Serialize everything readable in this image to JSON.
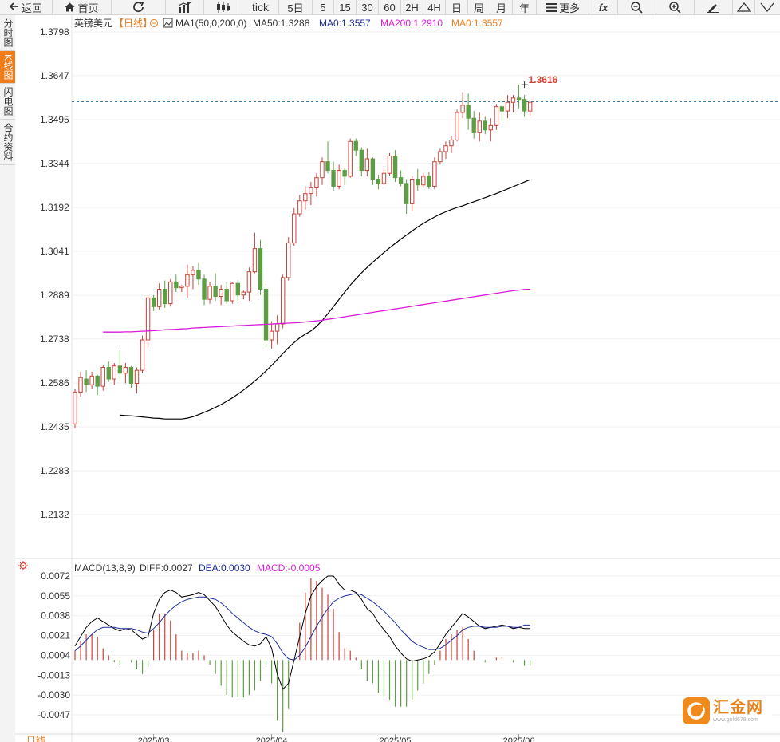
{
  "toolbar": {
    "back": "返回",
    "home": "首页",
    "tick": "tick",
    "five_day": "5日",
    "periods": [
      "5",
      "15",
      "30",
      "60",
      "2H",
      "4H",
      "日",
      "周",
      "月",
      "年"
    ],
    "more": "更多",
    "fx": "fx"
  },
  "side_tabs": [
    {
      "label": "分时图",
      "active": false
    },
    {
      "label": "K线图",
      "active": true
    },
    {
      "label": "闪电图",
      "active": false
    },
    {
      "label": "合约资料",
      "active": false
    }
  ],
  "legend": {
    "symbol": "英镑美元",
    "period": "【日线】",
    "indicator": "MA1(50,0,200,0)",
    "ma50": "MA50:1.3288",
    "ma0": "MA0:1.3557",
    "ma200": "MA200:1.2910",
    "ma0b": "MA0:1.3557"
  },
  "macd_legend": {
    "name": "MACD(13,8,9)",
    "diff": "DIFF:0.0027",
    "dea": "DEA:0.0030",
    "macd": "MACD:-0.0005"
  },
  "bottom_label": "日线",
  "logo": {
    "name": "汇金网",
    "url": "www.gold678.com"
  },
  "colors": {
    "up": "#c9413a",
    "down": "#5d9e45",
    "ma50": "#000000",
    "ma200": "#d81bd8",
    "diff": "#000000",
    "dea": "#1f2f9c",
    "accent": "#f07c1a"
  },
  "chart_data": [
    {
      "type": "candlestick",
      "title": "英镑美元【日线】",
      "y_ticks": [
        "1.3798",
        "1.3647",
        "1.3495",
        "1.3344",
        "1.3192",
        "1.3041",
        "1.2889",
        "1.2738",
        "1.2586",
        "1.2435",
        "1.2283",
        "1.2132"
      ],
      "ylim": [
        1.205,
        1.383
      ],
      "x_ticks": [
        {
          "label": "2025/03",
          "index": 14
        },
        {
          "label": "2025/04",
          "index": 35
        },
        {
          "label": "2025/05",
          "index": 57
        },
        {
          "label": "2025/06",
          "index": 79
        }
      ],
      "last_price_line": 1.3557,
      "high_annotation": {
        "label": "1.3616",
        "value": 1.3616,
        "index": 80
      },
      "candles": [
        {
          "o": 1.2445,
          "h": 1.2565,
          "l": 1.243,
          "c": 1.2555
        },
        {
          "o": 1.2555,
          "h": 1.2625,
          "l": 1.254,
          "c": 1.2605
        },
        {
          "o": 1.26,
          "h": 1.263,
          "l": 1.2555,
          "c": 1.258
        },
        {
          "o": 1.258,
          "h": 1.2625,
          "l": 1.2565,
          "c": 1.261
        },
        {
          "o": 1.261,
          "h": 1.2615,
          "l": 1.2545,
          "c": 1.2575
        },
        {
          "o": 1.2575,
          "h": 1.265,
          "l": 1.256,
          "c": 1.264
        },
        {
          "o": 1.264,
          "h": 1.266,
          "l": 1.259,
          "c": 1.26
        },
        {
          "o": 1.26,
          "h": 1.2655,
          "l": 1.258,
          "c": 1.2645
        },
        {
          "o": 1.2645,
          "h": 1.27,
          "l": 1.26,
          "c": 1.262
        },
        {
          "o": 1.262,
          "h": 1.2655,
          "l": 1.2585,
          "c": 1.264
        },
        {
          "o": 1.264,
          "h": 1.2645,
          "l": 1.257,
          "c": 1.2585
        },
        {
          "o": 1.2585,
          "h": 1.264,
          "l": 1.255,
          "c": 1.263
        },
        {
          "o": 1.263,
          "h": 1.275,
          "l": 1.262,
          "c": 1.2735
        },
        {
          "o": 1.2735,
          "h": 1.289,
          "l": 1.271,
          "c": 1.288
        },
        {
          "o": 1.288,
          "h": 1.289,
          "l": 1.2835,
          "c": 1.285
        },
        {
          "o": 1.285,
          "h": 1.293,
          "l": 1.284,
          "c": 1.291
        },
        {
          "o": 1.291,
          "h": 1.294,
          "l": 1.2845,
          "c": 1.286
        },
        {
          "o": 1.286,
          "h": 1.2945,
          "l": 1.285,
          "c": 1.2935
        },
        {
          "o": 1.2935,
          "h": 1.296,
          "l": 1.29,
          "c": 1.2915
        },
        {
          "o": 1.2915,
          "h": 1.2925,
          "l": 1.29,
          "c": 1.292
        },
        {
          "o": 1.292,
          "h": 1.2995,
          "l": 1.288,
          "c": 1.296
        },
        {
          "o": 1.296,
          "h": 1.299,
          "l": 1.291,
          "c": 1.2975
        },
        {
          "o": 1.2975,
          "h": 1.3,
          "l": 1.2925,
          "c": 1.2945
        },
        {
          "o": 1.2945,
          "h": 1.296,
          "l": 1.2855,
          "c": 1.2875
        },
        {
          "o": 1.2875,
          "h": 1.2935,
          "l": 1.286,
          "c": 1.292
        },
        {
          "o": 1.292,
          "h": 1.2965,
          "l": 1.287,
          "c": 1.2885
        },
        {
          "o": 1.2885,
          "h": 1.2925,
          "l": 1.2855,
          "c": 1.291
        },
        {
          "o": 1.291,
          "h": 1.2935,
          "l": 1.286,
          "c": 1.287
        },
        {
          "o": 1.287,
          "h": 1.2935,
          "l": 1.286,
          "c": 1.293
        },
        {
          "o": 1.293,
          "h": 1.294,
          "l": 1.287,
          "c": 1.289
        },
        {
          "o": 1.289,
          "h": 1.2905,
          "l": 1.2875,
          "c": 1.29
        },
        {
          "o": 1.29,
          "h": 1.2985,
          "l": 1.287,
          "c": 1.297
        },
        {
          "o": 1.297,
          "h": 1.3105,
          "l": 1.2965,
          "c": 1.305
        },
        {
          "o": 1.305,
          "h": 1.308,
          "l": 1.289,
          "c": 1.291
        },
        {
          "o": 1.291,
          "h": 1.292,
          "l": 1.271,
          "c": 1.2735
        },
        {
          "o": 1.2735,
          "h": 1.28,
          "l": 1.2705,
          "c": 1.2765
        },
        {
          "o": 1.2765,
          "h": 1.282,
          "l": 1.272,
          "c": 1.279
        },
        {
          "o": 1.279,
          "h": 1.296,
          "l": 1.2775,
          "c": 1.295
        },
        {
          "o": 1.295,
          "h": 1.309,
          "l": 1.294,
          "c": 1.307
        },
        {
          "o": 1.307,
          "h": 1.319,
          "l": 1.306,
          "c": 1.317
        },
        {
          "o": 1.317,
          "h": 1.3235,
          "l": 1.316,
          "c": 1.3215
        },
        {
          "o": 1.3215,
          "h": 1.3265,
          "l": 1.3185,
          "c": 1.324
        },
        {
          "o": 1.324,
          "h": 1.328,
          "l": 1.32,
          "c": 1.326
        },
        {
          "o": 1.326,
          "h": 1.331,
          "l": 1.323,
          "c": 1.3295
        },
        {
          "o": 1.3295,
          "h": 1.3365,
          "l": 1.327,
          "c": 1.335
        },
        {
          "o": 1.335,
          "h": 1.342,
          "l": 1.331,
          "c": 1.332
        },
        {
          "o": 1.332,
          "h": 1.335,
          "l": 1.325,
          "c": 1.3265
        },
        {
          "o": 1.3265,
          "h": 1.334,
          "l": 1.3255,
          "c": 1.332
        },
        {
          "o": 1.332,
          "h": 1.333,
          "l": 1.327,
          "c": 1.33
        },
        {
          "o": 1.33,
          "h": 1.343,
          "l": 1.3295,
          "c": 1.342
        },
        {
          "o": 1.342,
          "h": 1.343,
          "l": 1.337,
          "c": 1.339
        },
        {
          "o": 1.339,
          "h": 1.34,
          "l": 1.33,
          "c": 1.332
        },
        {
          "o": 1.332,
          "h": 1.3395,
          "l": 1.33,
          "c": 1.336
        },
        {
          "o": 1.336,
          "h": 1.3365,
          "l": 1.327,
          "c": 1.329
        },
        {
          "o": 1.329,
          "h": 1.3305,
          "l": 1.3255,
          "c": 1.3275
        },
        {
          "o": 1.3275,
          "h": 1.333,
          "l": 1.3265,
          "c": 1.331
        },
        {
          "o": 1.331,
          "h": 1.338,
          "l": 1.33,
          "c": 1.337
        },
        {
          "o": 1.337,
          "h": 1.339,
          "l": 1.328,
          "c": 1.3295
        },
        {
          "o": 1.3295,
          "h": 1.332,
          "l": 1.3265,
          "c": 1.3275
        },
        {
          "o": 1.3275,
          "h": 1.329,
          "l": 1.317,
          "c": 1.3205
        },
        {
          "o": 1.3205,
          "h": 1.33,
          "l": 1.318,
          "c": 1.329
        },
        {
          "o": 1.329,
          "h": 1.3325,
          "l": 1.325,
          "c": 1.327
        },
        {
          "o": 1.327,
          "h": 1.331,
          "l": 1.326,
          "c": 1.33
        },
        {
          "o": 1.33,
          "h": 1.3315,
          "l": 1.3255,
          "c": 1.3265
        },
        {
          "o": 1.3265,
          "h": 1.3365,
          "l": 1.3255,
          "c": 1.335
        },
        {
          "o": 1.335,
          "h": 1.3395,
          "l": 1.334,
          "c": 1.3385
        },
        {
          "o": 1.3385,
          "h": 1.342,
          "l": 1.336,
          "c": 1.3405
        },
        {
          "o": 1.3405,
          "h": 1.344,
          "l": 1.338,
          "c": 1.3425
        },
        {
          "o": 1.3425,
          "h": 1.353,
          "l": 1.342,
          "c": 1.352
        },
        {
          "o": 1.352,
          "h": 1.359,
          "l": 1.35,
          "c": 1.3545
        },
        {
          "o": 1.3545,
          "h": 1.3585,
          "l": 1.346,
          "c": 1.35
        },
        {
          "o": 1.35,
          "h": 1.3525,
          "l": 1.343,
          "c": 1.345
        },
        {
          "o": 1.345,
          "h": 1.352,
          "l": 1.342,
          "c": 1.349
        },
        {
          "o": 1.349,
          "h": 1.3505,
          "l": 1.3445,
          "c": 1.346
        },
        {
          "o": 1.346,
          "h": 1.35,
          "l": 1.342,
          "c": 1.3475
        },
        {
          "o": 1.3475,
          "h": 1.355,
          "l": 1.346,
          "c": 1.354
        },
        {
          "o": 1.354,
          "h": 1.3565,
          "l": 1.349,
          "c": 1.3525
        },
        {
          "o": 1.3525,
          "h": 1.358,
          "l": 1.35,
          "c": 1.3555
        },
        {
          "o": 1.3555,
          "h": 1.358,
          "l": 1.352,
          "c": 1.357
        },
        {
          "o": 1.357,
          "h": 1.3616,
          "l": 1.3535,
          "c": 1.3565
        },
        {
          "o": 1.3565,
          "h": 1.358,
          "l": 1.3505,
          "c": 1.3525
        },
        {
          "o": 1.3525,
          "h": 1.356,
          "l": 1.351,
          "c": 1.3555
        }
      ],
      "series": [
        {
          "name": "MA50",
          "values": [
            1.2475,
            1.2474,
            1.2473,
            1.2471,
            1.2469,
            1.2467,
            1.2465,
            1.2464,
            1.2462,
            1.2462,
            1.2462,
            1.2462,
            1.2465,
            1.247,
            1.2477,
            1.2485,
            1.2493,
            1.2502,
            1.2512,
            1.2523,
            1.2535,
            1.2548,
            1.2562,
            1.2577,
            1.2593,
            1.261,
            1.2628,
            1.2647,
            1.2667,
            1.2688,
            1.2708,
            1.2726,
            1.2742,
            1.2755,
            1.2766,
            1.2782,
            1.2802,
            1.2825,
            1.285,
            1.2875,
            1.29,
            1.2924,
            1.2946,
            1.2966,
            1.2985,
            1.3003,
            1.302,
            1.3037,
            1.3053,
            1.3068,
            1.3083,
            1.3097,
            1.3111,
            1.3125,
            1.3137,
            1.3148,
            1.3159,
            1.3169,
            1.3177,
            1.3185,
            1.3192,
            1.3198,
            1.3205,
            1.3212,
            1.3219,
            1.3226,
            1.3233,
            1.324,
            1.3248,
            1.3256,
            1.3264,
            1.3272,
            1.328,
            1.3288
          ]
        },
        {
          "name": "MA200",
          "values": [
            1.2762,
            1.2762,
            1.2762,
            1.2762,
            1.2763,
            1.2763,
            1.2764,
            1.2765,
            1.2766,
            1.2767,
            1.2768,
            1.277,
            1.2771,
            1.2772,
            1.2773,
            1.2774,
            1.2776,
            1.2777,
            1.2778,
            1.2779,
            1.278,
            1.2781,
            1.2782,
            1.2783,
            1.2784,
            1.2785,
            1.2786,
            1.2787,
            1.2788,
            1.2789,
            1.279,
            1.2791,
            1.2792,
            1.2793,
            1.2794,
            1.2795,
            1.2797,
            1.2799,
            1.2801,
            1.2803,
            1.2806,
            1.2809,
            1.2812,
            1.2815,
            1.2818,
            1.2821,
            1.2824,
            1.2827,
            1.283,
            1.2833,
            1.2836,
            1.2839,
            1.2842,
            1.2845,
            1.2848,
            1.2851,
            1.2854,
            1.2857,
            1.286,
            1.2863,
            1.2866,
            1.2869,
            1.2872,
            1.2875,
            1.2878,
            1.2881,
            1.2884,
            1.2887,
            1.289,
            1.2893,
            1.2896,
            1.2899,
            1.2902,
            1.2905,
            1.2907,
            1.2909,
            1.291
          ]
        }
      ]
    },
    {
      "type": "macd",
      "title": "MACD(13,8,9)",
      "y_ticks": [
        "0.0072",
        "0.0055",
        "0.0038",
        "0.0021",
        "0.0004",
        "-0.0013",
        "-0.0030",
        "-0.0047"
      ],
      "ylim": [
        -0.0058,
        0.0078
      ],
      "series": [
        {
          "name": "DIFF",
          "values": [
            0.0012,
            0.002,
            0.0028,
            0.0033,
            0.0036,
            0.0033,
            0.003,
            0.0027,
            0.0025,
            0.0027,
            0.0026,
            0.0022,
            0.0018,
            0.002,
            0.004,
            0.0052,
            0.0058,
            0.006,
            0.0058,
            0.0054,
            0.0055,
            0.0056,
            0.0058,
            0.0056,
            0.0051,
            0.0046,
            0.0038,
            0.003,
            0.0024,
            0.002,
            0.0016,
            0.0013,
            0.0012,
            0.0014,
            0.002,
            0.001,
            -0.0012,
            -0.0025,
            -0.002,
            0.0,
            0.002,
            0.004,
            0.0055,
            0.0063,
            0.0068,
            0.0072,
            0.0072,
            0.0065,
            0.006,
            0.006,
            0.0058,
            0.0052,
            0.0044,
            0.004,
            0.0032,
            0.0026,
            0.002,
            0.0012,
            0.0006,
            0.0001,
            -0.0001,
            0.0,
            0.0001,
            0.0003,
            0.0007,
            0.0014,
            0.0022,
            0.0028,
            0.0034,
            0.004,
            0.0037,
            0.0033,
            0.0029,
            0.0027,
            0.0028,
            0.0029,
            0.003,
            0.0029,
            0.0027,
            0.0028,
            0.0027,
            0.0027
          ]
        },
        {
          "name": "DEA",
          "values": [
            0.0008,
            0.0012,
            0.0017,
            0.0022,
            0.0026,
            0.0028,
            0.0028,
            0.0028,
            0.0027,
            0.0027,
            0.0027,
            0.0026,
            0.0024,
            0.0023,
            0.0027,
            0.0032,
            0.0038,
            0.0043,
            0.0047,
            0.005,
            0.0052,
            0.0053,
            0.0054,
            0.0054,
            0.0053,
            0.0052,
            0.0049,
            0.0045,
            0.004,
            0.0036,
            0.0032,
            0.0028,
            0.0025,
            0.0023,
            0.0022,
            0.002,
            0.0014,
            0.0006,
            0.0001,
            0.0,
            0.0004,
            0.0011,
            0.002,
            0.0029,
            0.0037,
            0.0044,
            0.005,
            0.0053,
            0.0055,
            0.0056,
            0.0057,
            0.0056,
            0.0053,
            0.005,
            0.0046,
            0.0042,
            0.0037,
            0.0032,
            0.0026,
            0.0021,
            0.0016,
            0.0013,
            0.0011,
            0.0009,
            0.0009,
            0.001,
            0.0013,
            0.0017,
            0.0021,
            0.0026,
            0.0028,
            0.0029,
            0.0029,
            0.0028,
            0.0028,
            0.0028,
            0.0029,
            0.0029,
            0.0028,
            0.0028,
            0.003,
            0.003
          ]
        },
        {
          "name": "MACD",
          "values": [
            0.0008,
            0.0016,
            0.0022,
            0.0022,
            0.002,
            0.001,
            0.0004,
            -0.0002,
            -0.0004,
            0.0,
            -0.0002,
            -0.0008,
            -0.0012,
            -0.0006,
            0.0026,
            0.004,
            0.004,
            0.0034,
            0.0022,
            0.0008,
            0.0006,
            0.0006,
            0.0008,
            0.0004,
            -0.0004,
            -0.0012,
            -0.0022,
            -0.003,
            -0.0032,
            -0.0032,
            -0.0032,
            -0.003,
            -0.0026,
            -0.0018,
            -0.0004,
            -0.002,
            -0.0052,
            -0.0062,
            -0.0042,
            0.0,
            0.0032,
            0.0058,
            0.007,
            0.0068,
            0.0062,
            0.0056,
            0.0044,
            0.0024,
            0.001,
            0.0008,
            0.0002,
            -0.0008,
            -0.0018,
            -0.002,
            -0.0028,
            -0.0032,
            -0.0034,
            -0.004,
            -0.004,
            -0.004,
            -0.0034,
            -0.0026,
            -0.002,
            -0.0012,
            -0.0004,
            0.0008,
            0.0018,
            0.0022,
            0.0026,
            0.0028,
            0.0018,
            0.0008,
            0.0,
            -0.0002,
            0.0,
            0.0002,
            0.0002,
            0.0,
            -0.0002,
            0.0,
            -0.0005,
            -0.0005
          ]
        }
      ]
    }
  ]
}
